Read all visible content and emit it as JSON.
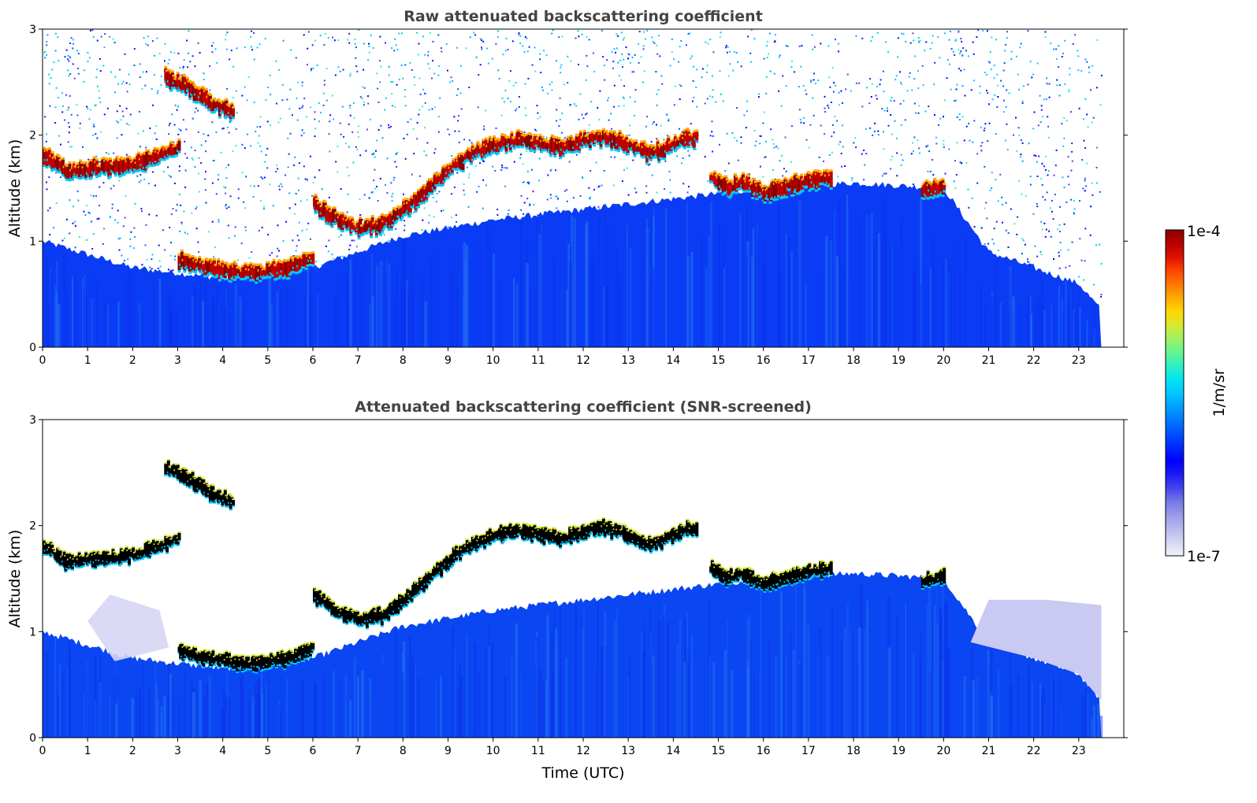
{
  "chart_data": [
    {
      "type": "heatmap",
      "title": "Raw attenuated backscattering coefficient",
      "xlabel": "",
      "ylabel": "Altitude (km)",
      "xlim": [
        0,
        24
      ],
      "ylim": [
        0,
        3
      ],
      "x_ticks": [
        "0",
        "1",
        "2",
        "3",
        "4",
        "5",
        "6",
        "7",
        "8",
        "9",
        "10",
        "11",
        "12",
        "13",
        "14",
        "15",
        "16",
        "17",
        "18",
        "19",
        "20",
        "21",
        "22",
        "23"
      ],
      "y_ticks": [
        "0",
        "1",
        "2",
        "3"
      ],
      "data_end_time": 23.5,
      "screened": false,
      "layers": [
        {
          "name": "cloud-top-early",
          "points": [
            [
              0,
              1.82
            ],
            [
              0.5,
              1.65
            ],
            [
              1,
              1.68
            ],
            [
              1.5,
              1.7
            ],
            [
              2,
              1.72
            ],
            [
              2.5,
              1.8
            ],
            [
              3,
              1.88
            ]
          ]
        },
        {
          "name": "cloud-upper",
          "points": [
            [
              2.7,
              2.55
            ],
            [
              3.2,
              2.45
            ],
            [
              3.7,
              2.3
            ],
            [
              4.2,
              2.22
            ]
          ]
        },
        {
          "name": "cloud-low",
          "points": [
            [
              3,
              0.82
            ],
            [
              3.5,
              0.76
            ],
            [
              4,
              0.72
            ],
            [
              4.5,
              0.7
            ],
            [
              5,
              0.72
            ],
            [
              5.5,
              0.76
            ],
            [
              6,
              0.85
            ]
          ]
        },
        {
          "name": "cloud-rising",
          "points": [
            [
              6,
              1.35
            ],
            [
              6.5,
              1.2
            ],
            [
              7,
              1.12
            ],
            [
              7.5,
              1.15
            ],
            [
              8,
              1.3
            ],
            [
              8.5,
              1.48
            ],
            [
              9,
              1.68
            ],
            [
              9.5,
              1.82
            ],
            [
              10,
              1.9
            ],
            [
              10.5,
              1.95
            ],
            [
              11,
              1.92
            ],
            [
              11.5,
              1.88
            ],
            [
              12,
              1.95
            ],
            [
              12.5,
              1.98
            ],
            [
              13,
              1.9
            ],
            [
              13.5,
              1.82
            ],
            [
              14,
              1.92
            ],
            [
              14.5,
              1.98
            ]
          ]
        },
        {
          "name": "cloud-broken",
          "points": [
            [
              14.8,
              1.6
            ],
            [
              15.2,
              1.5
            ],
            [
              15.5,
              1.55
            ],
            [
              16,
              1.45
            ],
            [
              16.8,
              1.55
            ],
            [
              17.5,
              1.6
            ]
          ]
        },
        {
          "name": "cloud-late",
          "points": [
            [
              19.5,
              1.48
            ],
            [
              20,
              1.52
            ]
          ]
        }
      ],
      "boundary_layer_top_km": [
        [
          0,
          1.0
        ],
        [
          2,
          0.75
        ],
        [
          4,
          0.65
        ],
        [
          6,
          0.75
        ],
        [
          8,
          1.05
        ],
        [
          10,
          1.2
        ],
        [
          12,
          1.3
        ],
        [
          14,
          1.4
        ],
        [
          16,
          1.5
        ],
        [
          18,
          1.55
        ],
        [
          20,
          1.5
        ],
        [
          21,
          0.9
        ],
        [
          22,
          0.75
        ],
        [
          23,
          0.6
        ],
        [
          23.5,
          0.35
        ]
      ]
    },
    {
      "type": "heatmap",
      "title": "Attenuated backscattering coefficient (SNR-screened)",
      "xlabel": "Time (UTC)",
      "ylabel": "Altitude (km)",
      "xlim": [
        0,
        24
      ],
      "ylim": [
        0,
        3
      ],
      "x_ticks": [
        "0",
        "1",
        "2",
        "3",
        "4",
        "5",
        "6",
        "7",
        "8",
        "9",
        "10",
        "11",
        "12",
        "13",
        "14",
        "15",
        "16",
        "17",
        "18",
        "19",
        "20",
        "21",
        "22",
        "23"
      ],
      "y_ticks": [
        "0",
        "1",
        "2",
        "3"
      ],
      "data_end_time": 23.5,
      "screened": true
    }
  ],
  "colorbar": {
    "label": "1/m/sr",
    "max_label": "1e-4",
    "min_label": "1e-7",
    "scale": "log",
    "colors": [
      "#f2f2fb",
      "#d6d6f5",
      "#b8b8ee",
      "#9a9ae8",
      "#7777e8",
      "#4444ee",
      "#1a1af5",
      "#0000ff",
      "#0028ff",
      "#0050ff",
      "#0078ff",
      "#00a0ff",
      "#00c8ff",
      "#00e6f0",
      "#2ef0c0",
      "#66f590",
      "#a0f060",
      "#d8e830",
      "#ffd700",
      "#ffaa00",
      "#ff7700",
      "#ff4400",
      "#e01000",
      "#b80000",
      "#8b0000"
    ]
  }
}
